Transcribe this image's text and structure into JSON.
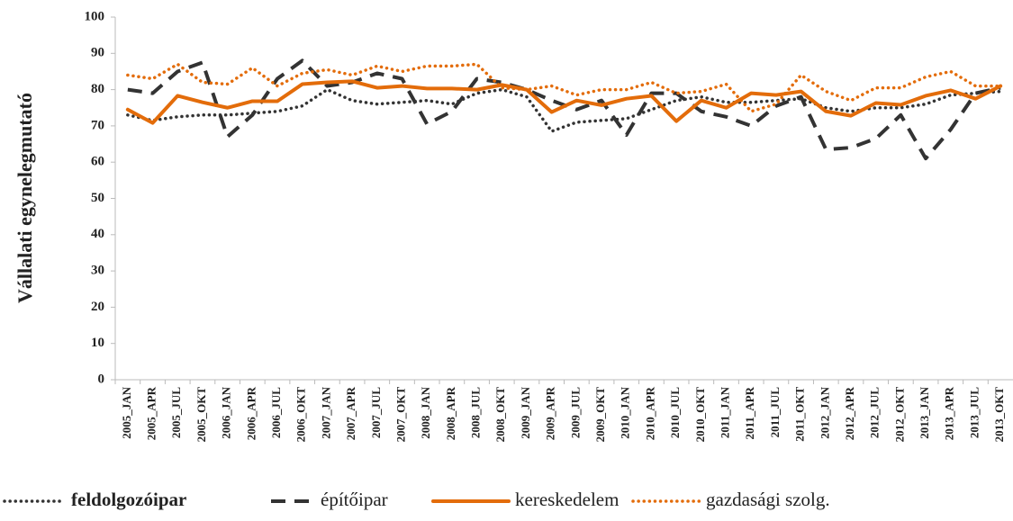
{
  "chart_data": {
    "type": "line",
    "y_label": "Vállalati egynelegmutató",
    "categories": [
      "2005_JAN",
      "2005_APR",
      "2005_JUL",
      "2005_OKT",
      "2006_JAN",
      "2006_APR",
      "2006_JUL",
      "2006_OKT",
      "2007_JAN",
      "2007_APR",
      "2007_JUL",
      "2007_OKT",
      "2008_JAN",
      "2008_APR",
      "2008_JUL",
      "2008_OKT",
      "2009_JAN",
      "2009_APR",
      "2009_JUL",
      "2009_OKT",
      "2010_JAN",
      "2010_APR",
      "2010_JUL",
      "2010_OKT",
      "2011_JAN",
      "2011_APR",
      "2011_JUL",
      "2011_OKT",
      "2012_JAN",
      "2012_APR",
      "2012_JUL",
      "2012_OKT",
      "2013_JAN",
      "2013_APR",
      "2013_JUL",
      "2013_OKT"
    ],
    "ylim": [
      0,
      100
    ],
    "yticks": [
      0,
      10,
      20,
      30,
      40,
      50,
      60,
      70,
      80,
      90,
      100
    ],
    "grid": false,
    "legend": "bottom",
    "series": [
      {
        "name": "feldolgozóipar",
        "color": "#333333",
        "style": "dotted",
        "bold_label": true,
        "values": [
          73,
          71.5,
          72.5,
          73,
          73,
          73.5,
          74,
          75.5,
          80,
          77,
          76,
          76.5,
          77,
          76,
          79,
          80,
          78,
          68.5,
          71,
          71.5,
          72,
          74.5,
          77,
          78,
          76.5,
          76.5,
          77,
          77.5,
          75,
          74,
          75,
          75,
          76,
          78.5,
          79,
          79.5
        ]
      },
      {
        "name": "építőipar",
        "color": "#333333",
        "style": "dashed",
        "bold_label": false,
        "values": [
          80,
          79,
          85,
          87.5,
          67,
          73,
          83,
          88,
          81,
          82,
          84.5,
          83,
          70.5,
          74,
          83,
          82,
          80,
          77,
          74.5,
          77,
          67.5,
          79,
          79,
          74,
          72.5,
          70,
          75.5,
          78,
          63.5,
          64,
          66.5,
          73,
          61,
          69,
          79,
          80.5
        ]
      },
      {
        "name": "kereskedelem",
        "color": "#e36c0a",
        "style": "solid",
        "bold_label": false,
        "values": [
          74.5,
          70.8,
          78.3,
          76.5,
          75,
          76.8,
          76.8,
          81.5,
          82,
          82.3,
          80.5,
          81,
          80.3,
          80.3,
          80,
          81.3,
          80,
          73.8,
          77,
          75.7,
          77.5,
          78.3,
          71.3,
          77,
          75,
          79,
          78.5,
          79.5,
          74,
          72.8,
          76.3,
          75.8,
          78.3,
          79.8,
          77.5,
          81
        ]
      },
      {
        "name": "gazdasági szolg.",
        "color": "#e36c0a",
        "style": "dotted",
        "bold_label": false,
        "values": [
          84,
          83,
          87,
          82,
          81.5,
          86,
          81,
          84.5,
          85.5,
          84,
          86.5,
          85,
          86.5,
          86.5,
          87,
          80.5,
          80,
          81,
          78.5,
          80,
          80,
          82,
          79,
          79.5,
          81.5,
          74,
          76,
          84,
          79.5,
          77,
          80.5,
          80.5,
          83.5,
          85,
          81,
          81
        ]
      }
    ]
  }
}
